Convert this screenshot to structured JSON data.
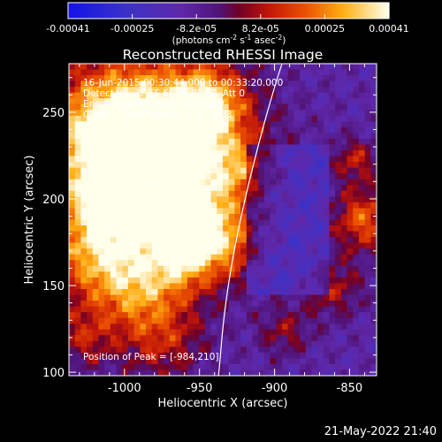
{
  "chart_data": {
    "type": "heatmap",
    "title": "Reconstructed RHESSI Image",
    "xlabel": "Heliocentric X (arcsec)",
    "ylabel": "Heliocentric Y (arcsec)",
    "xlim": [
      -1037,
      -832
    ],
    "ylim": [
      98,
      278
    ],
    "xticks": [
      -1000,
      -950,
      -900,
      -850
    ],
    "xtick_labels": [
      "-1000",
      "-950",
      "-900",
      "-850"
    ],
    "yticks": [
      100,
      150,
      200,
      250
    ],
    "ytick_labels": [
      "100",
      "150",
      "200",
      "250"
    ],
    "colorbar": {
      "range": [
        -0.00041,
        0.00041
      ],
      "tick_labels": [
        "-0.00041",
        "-0.00025",
        "-8.2e-05",
        "8.2e-05",
        "0.00025",
        "0.00041"
      ],
      "unit_label": "(photons cm",
      "unit_sup1": "-2",
      "unit_mid": " s",
      "unit_sup2": "-1",
      "unit_mid2": " asec",
      "unit_sup3": "-2",
      "unit_end": ")"
    },
    "peak": {
      "x": -984.2,
      "y": 210.0
    },
    "annotations": {
      "time": "16-Jun-2015 00:30:44.000 to 00:33:20.000",
      "detectors": "Detectors: 3F 5F 6F 7F 8F 9F, Att 0",
      "energy": "Energy Range: 25.0 - 50.0 keV",
      "method": "Clean     Total counts: 3.31E+03",
      "peak_label": "Position of Peak = [-984,210]"
    },
    "grid": false,
    "limb_line": true
  },
  "footer": {
    "timestamp": "21-May-2022 21:40"
  },
  "colors": {
    "background": "#000000",
    "text": "#ffffff",
    "limb": "#ffffff"
  }
}
